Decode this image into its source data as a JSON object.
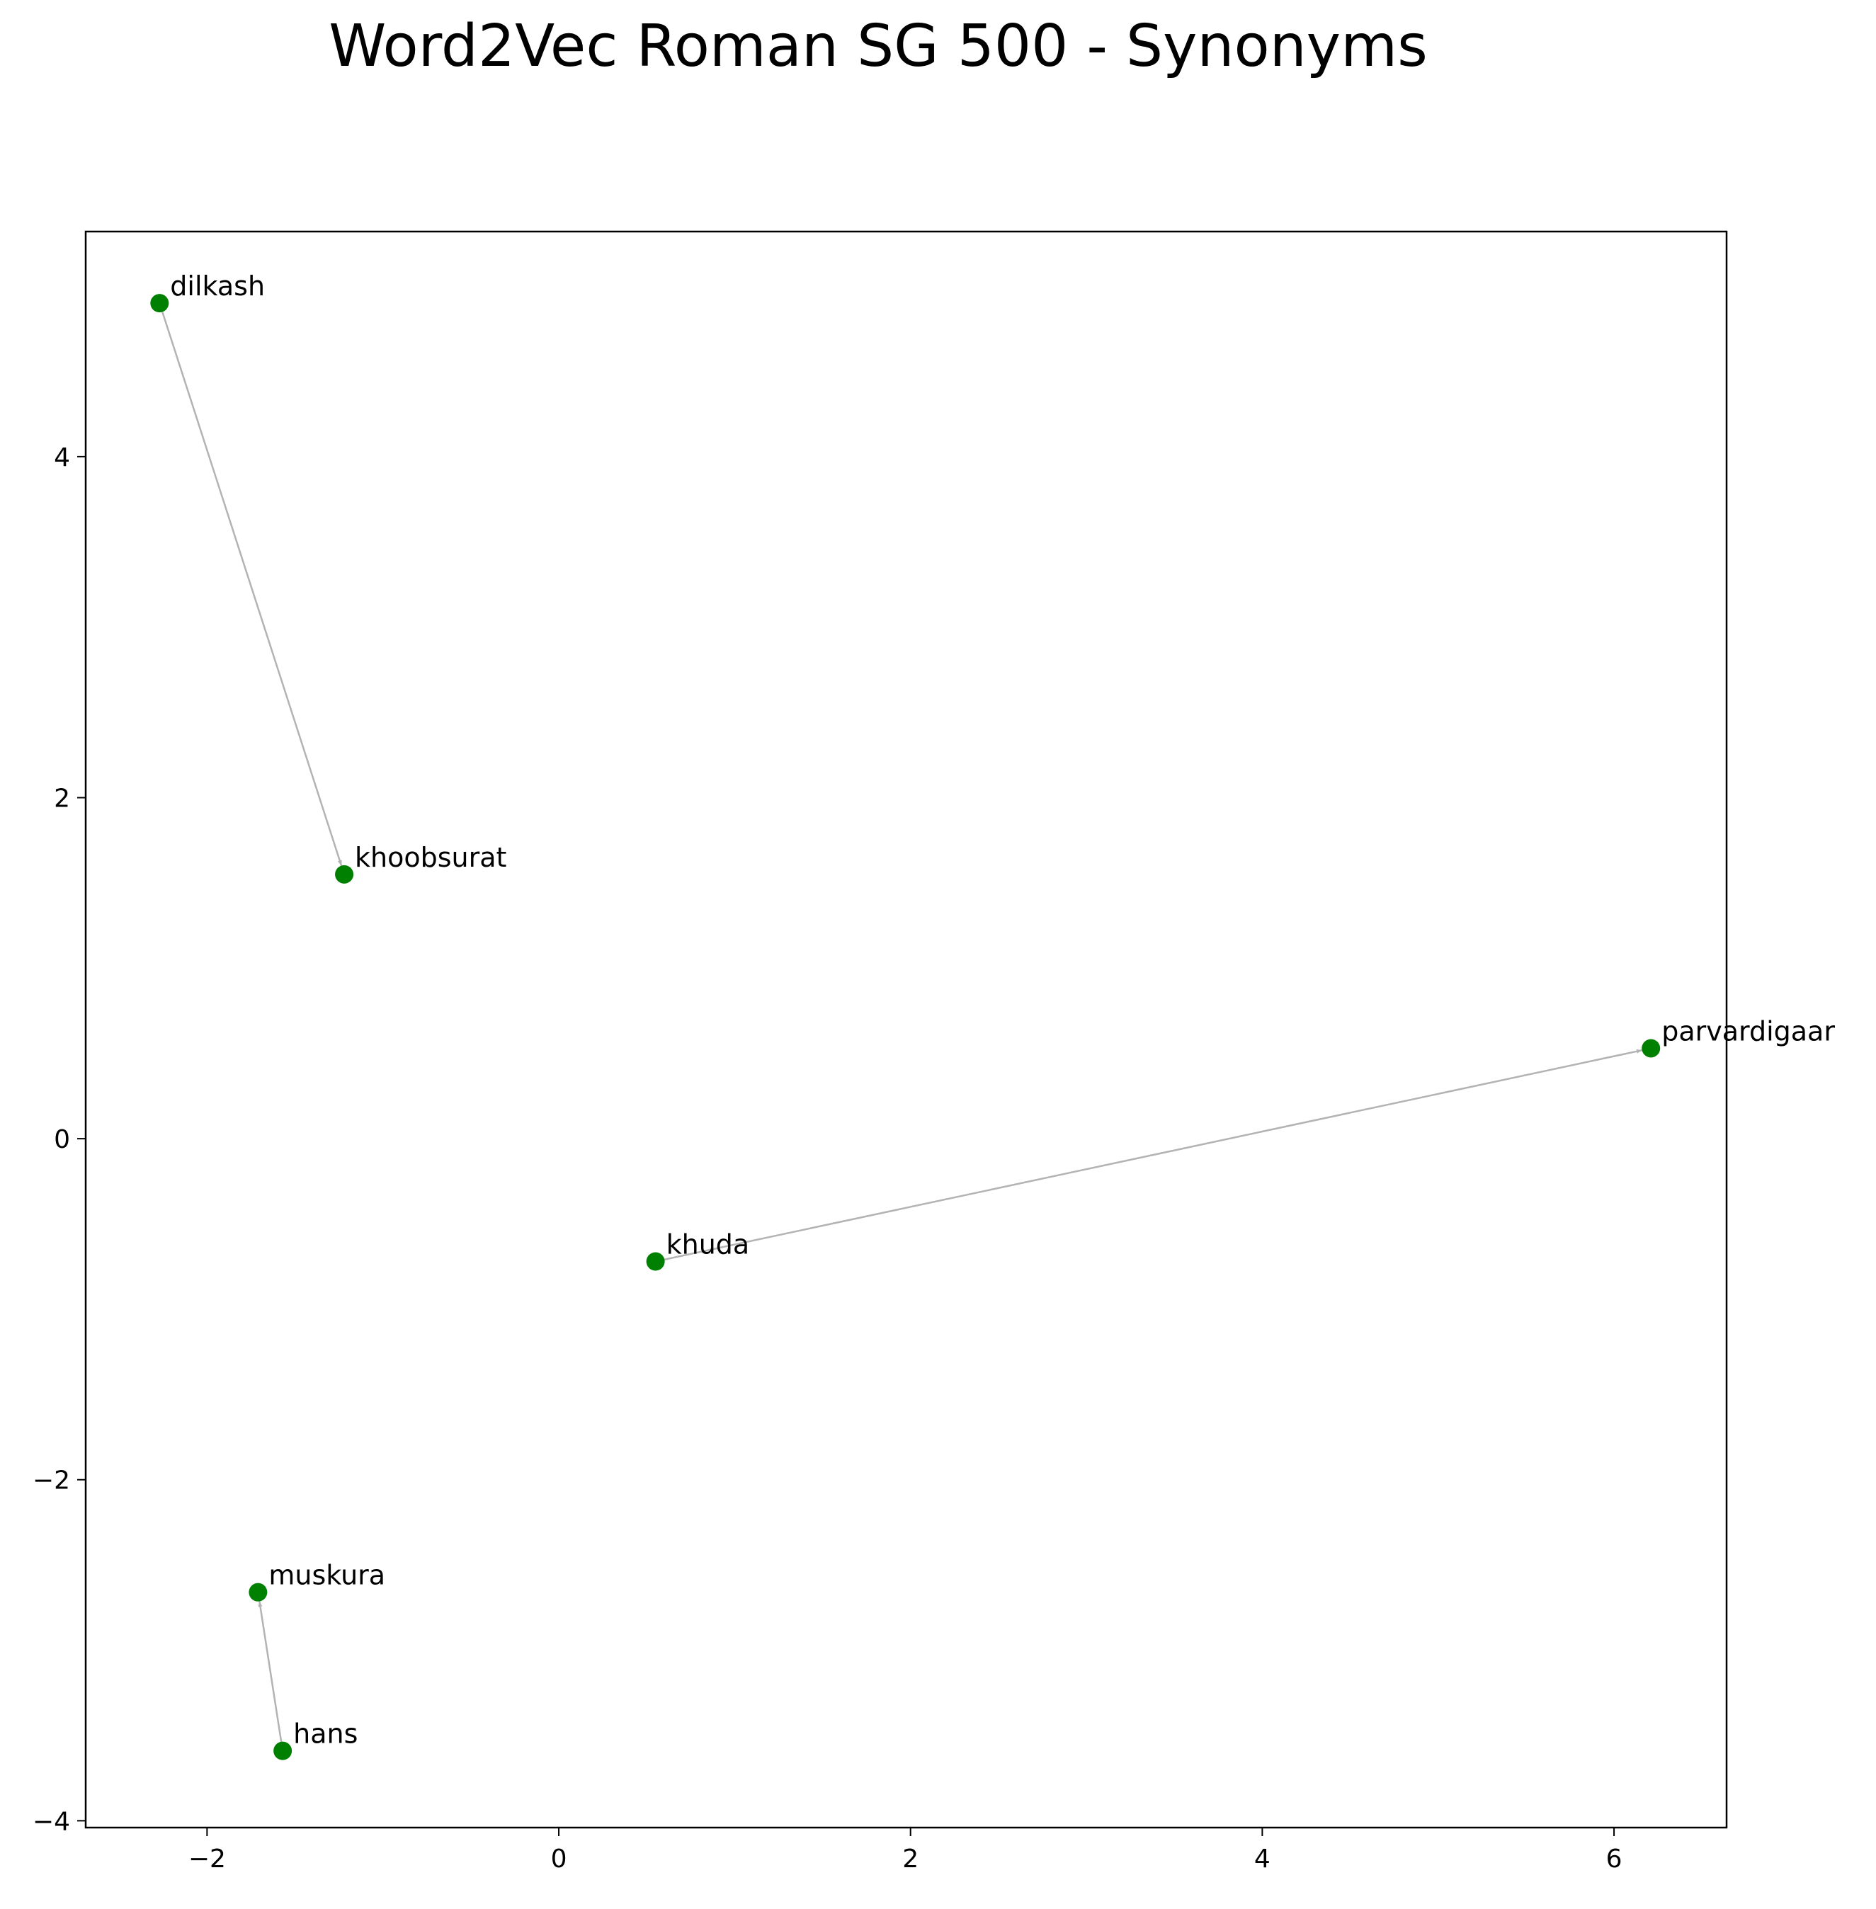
{
  "chart_data": {
    "type": "scatter",
    "title": "Word2Vec Roman SG 500 - Synonyms",
    "xlabel": "",
    "ylabel": "",
    "xlim": [
      -2.69,
      6.64
    ],
    "ylim": [
      -4.04,
      5.32
    ],
    "xticks": [
      -2,
      0,
      2,
      4,
      6
    ],
    "yticks": [
      -4,
      -2,
      0,
      2,
      4
    ],
    "xtick_labels": [
      "−2",
      "0",
      "2",
      "4",
      "6"
    ],
    "ytick_labels": [
      "−4",
      "−2",
      "0",
      "2",
      "4"
    ],
    "grid": false,
    "legend": "none",
    "colors": {
      "point": "#008000",
      "arrow": "#b3b3b3",
      "axes": "#000000"
    },
    "points": [
      {
        "word": "dilkash",
        "x": -2.27,
        "y": 4.9
      },
      {
        "word": "khoobsurat",
        "x": -1.22,
        "y": 1.55
      },
      {
        "word": "parvardigaar",
        "x": 6.21,
        "y": 0.53
      },
      {
        "word": "khuda",
        "x": 0.55,
        "y": -0.72
      },
      {
        "word": "muskura",
        "x": -1.71,
        "y": -2.66
      },
      {
        "word": "hans",
        "x": -1.57,
        "y": -3.59
      }
    ],
    "arrows": [
      {
        "from": "dilkash",
        "to": "khoobsurat"
      },
      {
        "from": "khuda",
        "to": "parvardigaar"
      },
      {
        "from": "hans",
        "to": "muskura"
      }
    ]
  }
}
